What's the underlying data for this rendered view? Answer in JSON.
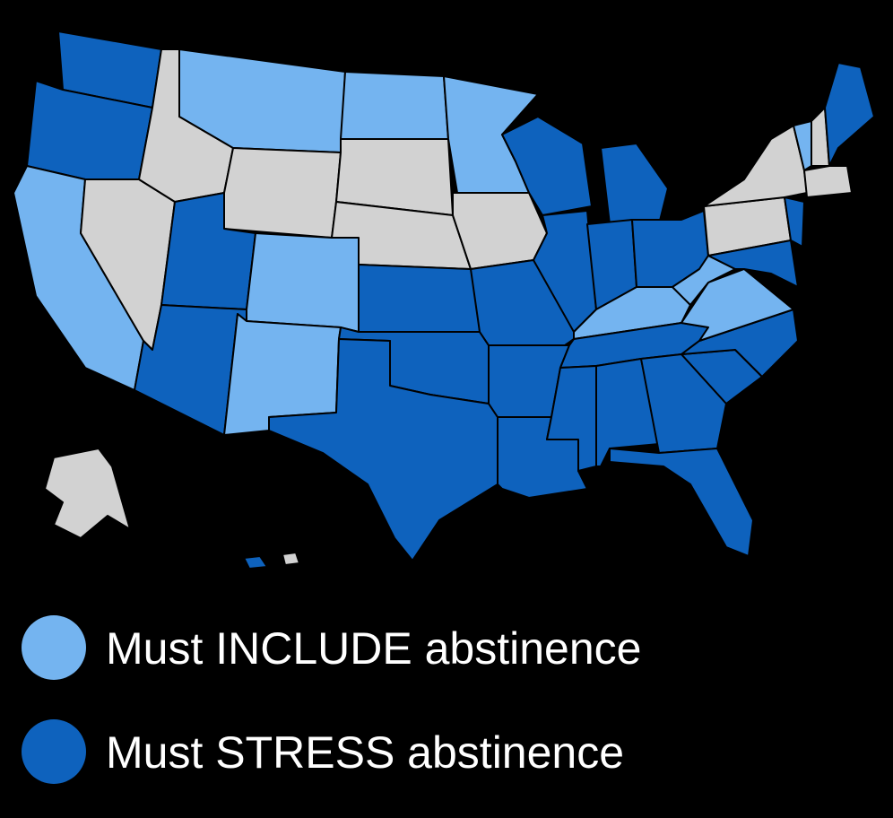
{
  "legend": [
    {
      "label": "Must INCLUDE abstinence",
      "color": "#74b4f0"
    },
    {
      "label": "Must STRESS abstinence",
      "color": "#0e62bd"
    }
  ]
}
